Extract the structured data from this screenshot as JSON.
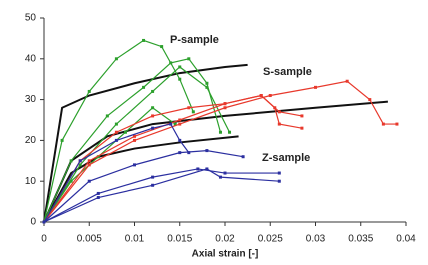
{
  "chart_data": {
    "type": "line",
    "x_label": "Axial strain [-]",
    "xlim": [
      0,
      0.04
    ],
    "xticks": [
      0,
      0.005,
      0.01,
      0.015,
      0.02,
      0.025,
      0.03,
      0.035,
      0.04
    ],
    "ylim": [
      0,
      50
    ],
    "yticks": [
      0,
      10,
      20,
      30,
      40,
      50
    ],
    "annotations": [
      "P-sample",
      "S-sample",
      "Z-sample"
    ],
    "series": [
      {
        "color": "#111111",
        "markers": false,
        "x": [
          0,
          0.002,
          0.005,
          0.01,
          0.015,
          0.02,
          0.0225
        ],
        "values": [
          0,
          28,
          31,
          34,
          36.5,
          38,
          38.5
        ]
      },
      {
        "color": "#111111",
        "markers": false,
        "x": [
          0,
          0.003,
          0.007,
          0.012,
          0.02,
          0.03,
          0.038
        ],
        "values": [
          0,
          15,
          21,
          24,
          26,
          28,
          29.5
        ]
      },
      {
        "color": "#111111",
        "markers": false,
        "x": [
          0,
          0.003,
          0.006,
          0.01,
          0.015,
          0.0215
        ],
        "values": [
          0,
          12,
          16,
          18,
          19.5,
          21
        ]
      },
      {
        "color": "#2ca02c",
        "markers": true,
        "x": [
          0,
          0.002,
          0.005,
          0.008,
          0.011,
          0.013,
          0.015,
          0.0165
        ],
        "values": [
          0,
          20,
          32,
          40,
          44.5,
          43,
          35,
          27
        ]
      },
      {
        "color": "#2ca02c",
        "markers": true,
        "x": [
          0,
          0.003,
          0.007,
          0.011,
          0.014,
          0.016,
          0.018,
          0.0195
        ],
        "values": [
          0,
          15,
          26,
          33,
          39,
          40,
          34,
          22
        ]
      },
      {
        "color": "#2ca02c",
        "markers": true,
        "x": [
          0,
          0.004,
          0.008,
          0.012,
          0.015,
          0.018,
          0.0205
        ],
        "values": [
          0,
          14,
          24,
          32,
          38,
          33,
          22
        ]
      },
      {
        "color": "#2ca02c",
        "markers": true,
        "x": [
          0,
          0.003,
          0.006,
          0.009,
          0.012,
          0.0145
        ],
        "values": [
          0,
          10,
          16,
          22,
          28,
          24
        ]
      },
      {
        "color": "#e8392c",
        "markers": true,
        "x": [
          0,
          0.005,
          0.01,
          0.015,
          0.02,
          0.025,
          0.03,
          0.0335,
          0.036,
          0.0375,
          0.039
        ],
        "values": [
          0,
          14,
          20,
          24,
          28,
          31,
          33,
          34.5,
          30,
          24,
          24
        ]
      },
      {
        "color": "#e8392c",
        "markers": true,
        "x": [
          0,
          0.005,
          0.01,
          0.015,
          0.02,
          0.024,
          0.0255,
          0.026,
          0.0285
        ],
        "values": [
          0,
          15,
          21,
          25,
          29,
          31,
          28,
          24,
          23
        ]
      },
      {
        "color": "#e8392c",
        "markers": true,
        "x": [
          0,
          0.004,
          0.008,
          0.012,
          0.016,
          0.02,
          0.024,
          0.026,
          0.0285
        ],
        "values": [
          0,
          15,
          22,
          26,
          28,
          29,
          31,
          27,
          26
        ]
      },
      {
        "color": "#2b2fa0",
        "markers": true,
        "x": [
          0,
          0.004,
          0.008,
          0.012,
          0.014,
          0.015,
          0.016
        ],
        "values": [
          0,
          15,
          20,
          23,
          24,
          20,
          17
        ]
      },
      {
        "color": "#2b2fa0",
        "markers": true,
        "x": [
          0,
          0.005,
          0.01,
          0.015,
          0.018,
          0.022
        ],
        "values": [
          0,
          10,
          14,
          17,
          17.5,
          16
        ]
      },
      {
        "color": "#2b2fa0",
        "markers": true,
        "x": [
          0,
          0.006,
          0.012,
          0.017,
          0.02,
          0.026
        ],
        "values": [
          0,
          7,
          11,
          13,
          12,
          12
        ]
      },
      {
        "color": "#2b2fa0",
        "markers": true,
        "x": [
          0,
          0.006,
          0.012,
          0.018,
          0.0195,
          0.026
        ],
        "values": [
          0,
          6,
          9,
          13,
          11,
          10
        ]
      }
    ]
  }
}
